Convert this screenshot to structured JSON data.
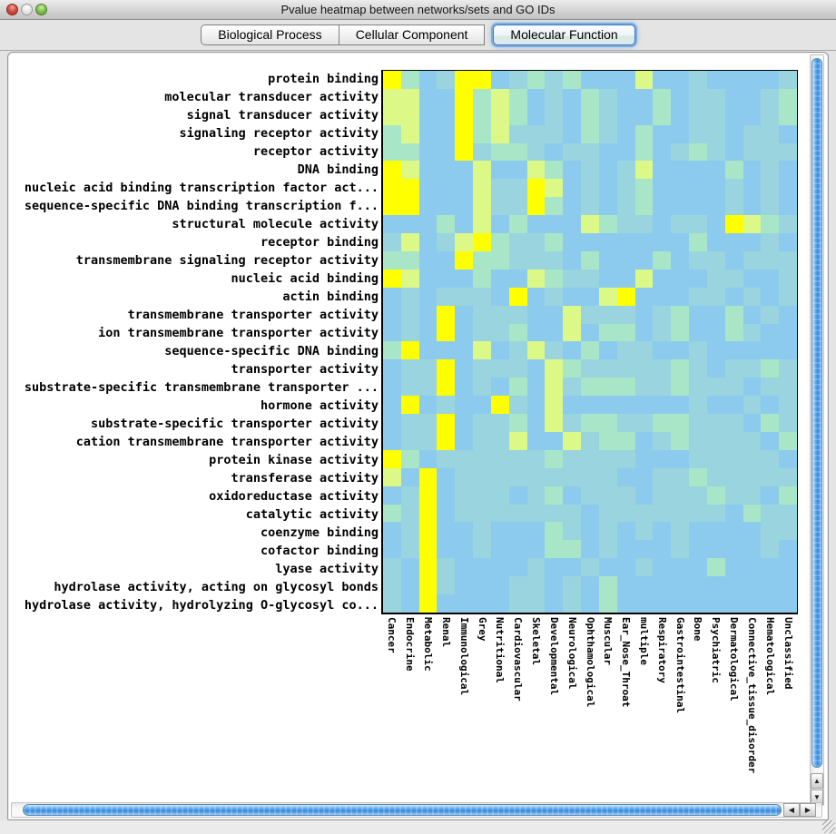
{
  "window": {
    "title": "Pvalue heatmap between networks/sets and GO IDs"
  },
  "tabs": [
    {
      "label": "Biological Process",
      "selected": false
    },
    {
      "label": "Cellular Component",
      "selected": false
    },
    {
      "label": "Molecular Function",
      "selected": true
    }
  ],
  "scroll_icons": {
    "up": "▲",
    "down": "▼",
    "left": "◀",
    "right": "▶"
  },
  "accent_colors": {
    "aqua_scrollbar_blue": "#3388DD",
    "selected_tab_ring": "#7AAEE4"
  },
  "chart_data": {
    "type": "heatmap",
    "title": "Pvalue heatmap between networks/sets and GO IDs",
    "value_scale_note": "levels 0-4 map low-to-high significance: 0 sky blue, 1 blue-teal, 2 mint green, 3 yellow-green, 4 bright yellow",
    "palette": [
      "#8CCBEE",
      "#99D4DF",
      "#A9E6C8",
      "#DCF887",
      "#FFFF00"
    ],
    "rows": [
      "protein binding",
      "molecular transducer activity",
      "signal transducer activity",
      "signaling receptor activity",
      "receptor activity",
      "DNA binding",
      "nucleic acid binding transcription factor act...",
      "sequence-specific DNA binding transcription f...",
      "structural molecule activity",
      "receptor binding",
      "transmembrane signaling receptor activity",
      "nucleic acid binding",
      "actin binding",
      "transmembrane transporter activity",
      "ion transmembrane transporter activity",
      "sequence-specific DNA binding",
      "transporter activity",
      "substrate-specific transmembrane transporter ...",
      "hormone activity",
      "substrate-specific transporter activity",
      "cation transmembrane transporter activity",
      "protein kinase activity",
      "transferase activity",
      "oxidoreductase activity",
      "catalytic activity",
      "coenzyme binding",
      "cofactor binding",
      "lyase activity",
      "hydrolase activity, acting on glycosyl bonds",
      "hydrolase activity, hydrolyzing O-glycosyl co..."
    ],
    "columns": [
      "Cancer",
      "Endocrine",
      "Metabolic",
      "Renal",
      "Immunological",
      "Grey",
      "Nutritional",
      "Cardiovascular",
      "Skeletal",
      "Developmental",
      "Neurological",
      "Ophthamological",
      "Muscular",
      "Ear_Nose_Throat",
      "multiple",
      "Respiratory",
      "Gastrointestinal",
      "Bone",
      "Psychiatric",
      "Dermatological",
      "Connective_tissue_disorder",
      "Hematological",
      "Unclassified"
    ],
    "values": [
      [
        4,
        2,
        0,
        1,
        4,
        4,
        0,
        1,
        2,
        1,
        2,
        0,
        0,
        0,
        3,
        0,
        0,
        1,
        0,
        0,
        0,
        0,
        1
      ],
      [
        3,
        3,
        0,
        0,
        4,
        2,
        3,
        2,
        0,
        1,
        0,
        2,
        1,
        0,
        0,
        2,
        0,
        1,
        1,
        0,
        0,
        1,
        2
      ],
      [
        3,
        3,
        0,
        0,
        4,
        2,
        3,
        2,
        0,
        1,
        0,
        2,
        1,
        0,
        0,
        2,
        0,
        1,
        1,
        0,
        0,
        1,
        2
      ],
      [
        2,
        3,
        0,
        0,
        4,
        2,
        3,
        1,
        1,
        1,
        0,
        2,
        1,
        0,
        2,
        0,
        0,
        1,
        1,
        0,
        1,
        1,
        0
      ],
      [
        2,
        2,
        0,
        0,
        4,
        1,
        2,
        2,
        1,
        0,
        1,
        1,
        0,
        0,
        2,
        0,
        1,
        2,
        1,
        0,
        1,
        1,
        1
      ],
      [
        4,
        3,
        0,
        0,
        0,
        3,
        0,
        0,
        3,
        2,
        0,
        1,
        0,
        1,
        3,
        0,
        0,
        0,
        0,
        2,
        0,
        1,
        0
      ],
      [
        4,
        4,
        0,
        0,
        0,
        3,
        1,
        1,
        4,
        3,
        0,
        1,
        0,
        1,
        2,
        0,
        0,
        0,
        0,
        1,
        0,
        1,
        0
      ],
      [
        4,
        4,
        0,
        0,
        0,
        3,
        1,
        1,
        4,
        2,
        0,
        1,
        0,
        1,
        2,
        0,
        0,
        0,
        0,
        1,
        0,
        1,
        0
      ],
      [
        0,
        0,
        0,
        2,
        0,
        3,
        0,
        2,
        0,
        0,
        0,
        3,
        2,
        1,
        1,
        0,
        1,
        1,
        0,
        4,
        3,
        2,
        1
      ],
      [
        1,
        3,
        0,
        1,
        3,
        4,
        2,
        1,
        1,
        2,
        0,
        0,
        0,
        0,
        0,
        0,
        0,
        2,
        0,
        0,
        0,
        1,
        0
      ],
      [
        2,
        2,
        0,
        0,
        4,
        2,
        2,
        1,
        1,
        1,
        0,
        2,
        0,
        0,
        0,
        2,
        0,
        1,
        1,
        0,
        1,
        1,
        1
      ],
      [
        4,
        3,
        0,
        0,
        0,
        2,
        0,
        0,
        3,
        2,
        1,
        1,
        0,
        0,
        3,
        0,
        0,
        0,
        1,
        1,
        0,
        0,
        1
      ],
      [
        0,
        1,
        0,
        1,
        1,
        1,
        0,
        4,
        0,
        1,
        0,
        0,
        3,
        4,
        0,
        0,
        0,
        1,
        1,
        0,
        1,
        0,
        1
      ],
      [
        0,
        1,
        0,
        4,
        0,
        1,
        1,
        1,
        0,
        0,
        3,
        1,
        1,
        1,
        0,
        1,
        2,
        0,
        0,
        2,
        0,
        1,
        0
      ],
      [
        0,
        1,
        0,
        4,
        0,
        1,
        1,
        2,
        0,
        0,
        3,
        0,
        2,
        2,
        0,
        1,
        2,
        0,
        0,
        2,
        1,
        0,
        0
      ],
      [
        2,
        4,
        0,
        0,
        0,
        3,
        0,
        1,
        3,
        1,
        0,
        2,
        0,
        1,
        1,
        0,
        0,
        1,
        0,
        0,
        0,
        0,
        0
      ],
      [
        0,
        1,
        1,
        4,
        0,
        1,
        1,
        1,
        0,
        3,
        2,
        1,
        1,
        1,
        1,
        1,
        2,
        1,
        0,
        1,
        1,
        2,
        1
      ],
      [
        0,
        1,
        1,
        4,
        0,
        1,
        0,
        2,
        0,
        3,
        1,
        2,
        2,
        2,
        1,
        1,
        2,
        1,
        1,
        1,
        0,
        1,
        1
      ],
      [
        0,
        4,
        0,
        1,
        0,
        0,
        4,
        1,
        0,
        3,
        0,
        0,
        0,
        0,
        0,
        0,
        0,
        1,
        0,
        0,
        1,
        0,
        1
      ],
      [
        0,
        1,
        1,
        4,
        0,
        1,
        1,
        2,
        0,
        3,
        1,
        2,
        2,
        1,
        1,
        2,
        2,
        1,
        1,
        1,
        0,
        2,
        1
      ],
      [
        0,
        1,
        1,
        4,
        0,
        1,
        1,
        3,
        0,
        0,
        3,
        1,
        2,
        2,
        0,
        1,
        2,
        1,
        1,
        1,
        1,
        0,
        2
      ],
      [
        4,
        2,
        0,
        1,
        1,
        1,
        1,
        1,
        1,
        2,
        1,
        1,
        1,
        1,
        0,
        0,
        0,
        1,
        1,
        1,
        1,
        1,
        0
      ],
      [
        3,
        0,
        4,
        0,
        1,
        1,
        1,
        1,
        1,
        1,
        1,
        1,
        1,
        0,
        0,
        1,
        1,
        2,
        1,
        1,
        1,
        1,
        1
      ],
      [
        0,
        1,
        4,
        0,
        1,
        1,
        1,
        0,
        1,
        2,
        0,
        1,
        1,
        1,
        0,
        1,
        1,
        1,
        2,
        1,
        1,
        0,
        2
      ],
      [
        2,
        1,
        4,
        0,
        1,
        1,
        1,
        1,
        1,
        1,
        1,
        0,
        1,
        1,
        1,
        1,
        1,
        1,
        1,
        0,
        2,
        1,
        1
      ],
      [
        0,
        1,
        4,
        0,
        0,
        1,
        0,
        0,
        0,
        2,
        1,
        0,
        1,
        0,
        1,
        0,
        1,
        0,
        0,
        0,
        0,
        1,
        1
      ],
      [
        0,
        1,
        4,
        0,
        0,
        1,
        0,
        0,
        0,
        2,
        2,
        0,
        1,
        0,
        0,
        0,
        1,
        0,
        0,
        0,
        0,
        1,
        0
      ],
      [
        1,
        0,
        4,
        1,
        0,
        0,
        0,
        0,
        1,
        0,
        0,
        1,
        0,
        0,
        1,
        0,
        0,
        0,
        2,
        0,
        0,
        0,
        0
      ],
      [
        1,
        0,
        4,
        1,
        0,
        0,
        0,
        1,
        1,
        0,
        1,
        0,
        2,
        0,
        0,
        0,
        0,
        0,
        0,
        0,
        0,
        0,
        0
      ],
      [
        1,
        0,
        4,
        0,
        0,
        0,
        0,
        1,
        1,
        0,
        1,
        0,
        2,
        0,
        0,
        0,
        0,
        0,
        0,
        0,
        0,
        0,
        0
      ]
    ]
  }
}
